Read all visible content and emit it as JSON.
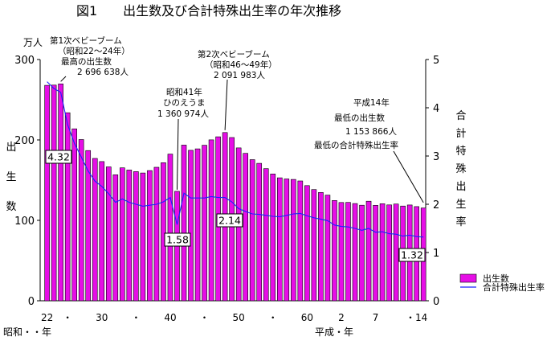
{
  "chart_data": {
    "type": "bar+line",
    "title": "図1　　出生数及び合計特殊出生率の年次推移",
    "y_left": {
      "unit": "万人",
      "label_chars": [
        "出",
        "生",
        "数"
      ],
      "ylim": [
        0,
        300
      ],
      "ticks": [
        "0",
        "100",
        "200",
        "300"
      ]
    },
    "y_right": {
      "label_chars": [
        "合",
        "計",
        "特",
        "殊",
        "出",
        "生",
        "率"
      ],
      "ylim": [
        0,
        5
      ],
      "ticks": [
        "0",
        "1",
        "2",
        "3",
        "4",
        "5"
      ]
    },
    "x_tick_labels": [
      "22",
      "・",
      "30",
      "・",
      "40",
      "・",
      "50",
      "・",
      "60",
      "2",
      "7",
      "・14"
    ],
    "x_tick_years": [
      1947,
      1950,
      1955,
      1960,
      1965,
      1970,
      1975,
      1980,
      1985,
      1990,
      1995,
      2001
    ],
    "x_sub_labels": [
      "昭和・・年",
      "平成・年"
    ],
    "legend": [
      {
        "label": "出生数",
        "color": "#e60ee6",
        "kind": "bar"
      },
      {
        "label": "合計特殊出生率",
        "color": "#1a22ff",
        "kind": "line"
      }
    ],
    "years": [
      1947,
      1948,
      1949,
      1950,
      1951,
      1952,
      1953,
      1954,
      1955,
      1956,
      1957,
      1958,
      1959,
      1960,
      1961,
      1962,
      1963,
      1964,
      1965,
      1966,
      1967,
      1968,
      1969,
      1970,
      1971,
      1972,
      1973,
      1974,
      1975,
      1976,
      1977,
      1978,
      1979,
      1980,
      1981,
      1982,
      1983,
      1984,
      1985,
      1986,
      1987,
      1988,
      1989,
      1990,
      1991,
      1992,
      1993,
      1994,
      1995,
      1996,
      1997,
      1998,
      1999,
      2000,
      2001,
      2002
    ],
    "series": [
      {
        "name": "出生数",
        "type": "bar",
        "values": [
          267.9,
          268.2,
          269.7,
          233.8,
          213.8,
          200.5,
          186.8,
          177.0,
          173.1,
          166.5,
          156.7,
          165.3,
          162.6,
          160.6,
          158.9,
          161.9,
          166.0,
          171.7,
          182.4,
          136.1,
          193.6,
          187.1,
          188.9,
          193.4,
          200.1,
          203.9,
          209.2,
          203.0,
          190.1,
          183.3,
          175.5,
          170.9,
          164.3,
          157.7,
          152.9,
          151.5,
          150.9,
          149.0,
          143.2,
          138.3,
          134.7,
          131.4,
          124.7,
          122.2,
          122.3,
          120.9,
          118.8,
          123.8,
          118.7,
          120.7,
          119.2,
          120.3,
          117.8,
          119.1,
          117.1,
          115.4
        ]
      },
      {
        "name": "合計特殊出生率",
        "type": "line",
        "values": [
          4.54,
          4.4,
          4.32,
          3.65,
          3.26,
          2.98,
          2.69,
          2.48,
          2.37,
          2.22,
          2.04,
          2.11,
          2.04,
          2.0,
          1.96,
          1.98,
          2.0,
          2.05,
          2.14,
          1.58,
          2.23,
          2.13,
          2.13,
          2.13,
          2.16,
          2.14,
          2.14,
          2.05,
          1.91,
          1.85,
          1.8,
          1.79,
          1.77,
          1.75,
          1.74,
          1.77,
          1.8,
          1.81,
          1.76,
          1.72,
          1.69,
          1.66,
          1.57,
          1.54,
          1.53,
          1.5,
          1.46,
          1.5,
          1.42,
          1.43,
          1.39,
          1.38,
          1.34,
          1.36,
          1.33,
          1.32
        ]
      }
    ],
    "rate_labels": [
      {
        "year": 1949,
        "text": "4.32"
      },
      {
        "year": 1966,
        "text": "1.58"
      },
      {
        "year": 1973,
        "text": "2.14"
      },
      {
        "year": 2002,
        "text": "1.32"
      }
    ],
    "annotations": {
      "boom1": {
        "lines": [
          "第1次ベビーブーム",
          "（昭和22〜24年）",
          "最高の出生数",
          "2 696 638人"
        ],
        "year": 1949
      },
      "hinoeuma": {
        "lines": [
          "昭和41年",
          "ひのえうま",
          "1 360 974人"
        ],
        "year": 1966
      },
      "boom2": {
        "lines": [
          "第2次ベビーブーム",
          "（昭和46〜49年）",
          "2 091 983人"
        ],
        "year": 1973
      },
      "lowest": {
        "lines": [
          "平成14年",
          "最低の出生数",
          "1 153 866人",
          "最低の合計特殊出生率"
        ],
        "year": 2002
      }
    }
  }
}
